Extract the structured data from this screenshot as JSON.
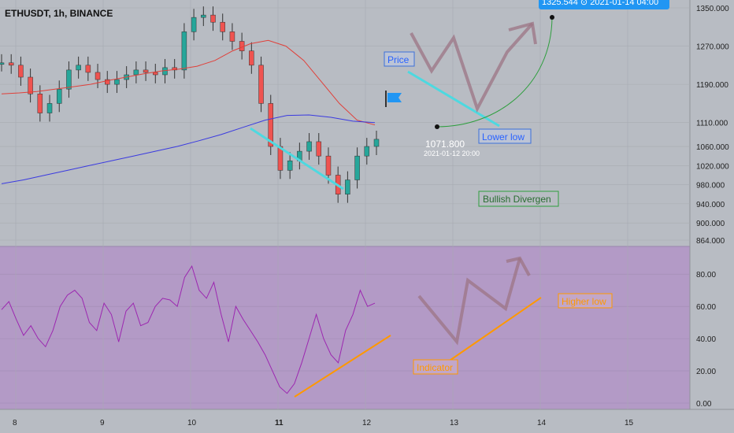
{
  "header": {
    "title": "ETHUSDT, 1h, BINANCE"
  },
  "colors": {
    "background": "#b8bcc3",
    "up_candle": "#26a69a",
    "down_candle": "#ef5350",
    "ma_short": "#e0403a",
    "ma_long": "#3a3ae0",
    "rsi_panel": "#b39ac6",
    "rsi_line": "#9c27b0",
    "divergence": "#4dd9e0",
    "indicator_trend": "#ff9800",
    "curve": "#2e9e3e",
    "flag": "#2196f3"
  },
  "annotations": {
    "price_label": "Price",
    "lower_low_label": "Lower low",
    "bullish_label": "Bullish Divergen",
    "indicator_label": "Indicator",
    "higher_low_label": "Higher low",
    "point_price": "1071.800",
    "point_time": "2021-01-12 20:00",
    "target_tag": "1325.544 ⊙ 2021-01-14  04:00"
  },
  "chart_data": [
    {
      "type": "line",
      "title": "ETHUSDT, 1h, BINANCE",
      "ylim": [
        864,
        1350
      ],
      "yticks": [
        "1350.000",
        "1270.000",
        "1190.000",
        "1110.000",
        "1060.000",
        "1020.000",
        "980.000",
        "940.000",
        "900.000",
        "864.000"
      ],
      "x_tick_labels": [
        "8",
        "9",
        "10",
        "11",
        "12",
        "13",
        "14",
        "15"
      ],
      "series": [
        {
          "values": [
            1235,
            1230,
            1205,
            1170,
            1130,
            1150,
            1180,
            1220,
            1230,
            1215,
            1200,
            1190,
            1200,
            1210,
            1220,
            1215,
            1210,
            1225,
            1220,
            1300,
            1330,
            1335,
            1320,
            1300,
            1280,
            1260,
            1230,
            1150,
            1060,
            1010,
            1030,
            1050,
            1070,
            1040,
            1000,
            960,
            990,
            1040,
            1060,
            1075
          ]
        },
        {
          "values": [
            1170,
            1172,
            1175,
            1180,
            1185,
            1190,
            1198,
            1205,
            1212,
            1218,
            1222,
            1228,
            1240,
            1260,
            1275,
            1282,
            1270,
            1240,
            1195,
            1150,
            1115,
            1105
          ]
        },
        {
          "values": [
            982,
            990,
            1000,
            1010,
            1020,
            1030,
            1040,
            1050,
            1060,
            1072,
            1085,
            1100,
            1115,
            1125,
            1126,
            1121,
            1113,
            1110
          ]
        }
      ]
    },
    {
      "type": "line",
      "title": "",
      "ylim": [
        0,
        85
      ],
      "yticks": [
        "80.00",
        "60.00",
        "40.00",
        "20.00",
        "0.00"
      ],
      "series": [
        {
          "values": [
            58,
            63,
            52,
            42,
            48,
            40,
            35,
            45,
            60,
            67,
            70,
            65,
            50,
            45,
            62,
            55,
            38,
            57,
            62,
            48,
            50,
            60,
            65,
            64,
            60,
            78,
            85,
            70,
            65,
            75,
            55,
            38,
            60,
            52,
            45,
            38,
            30,
            20,
            10,
            6,
            12,
            25,
            40,
            55,
            40,
            30,
            25,
            45,
            55,
            70,
            60,
            62
          ]
        }
      ]
    }
  ]
}
